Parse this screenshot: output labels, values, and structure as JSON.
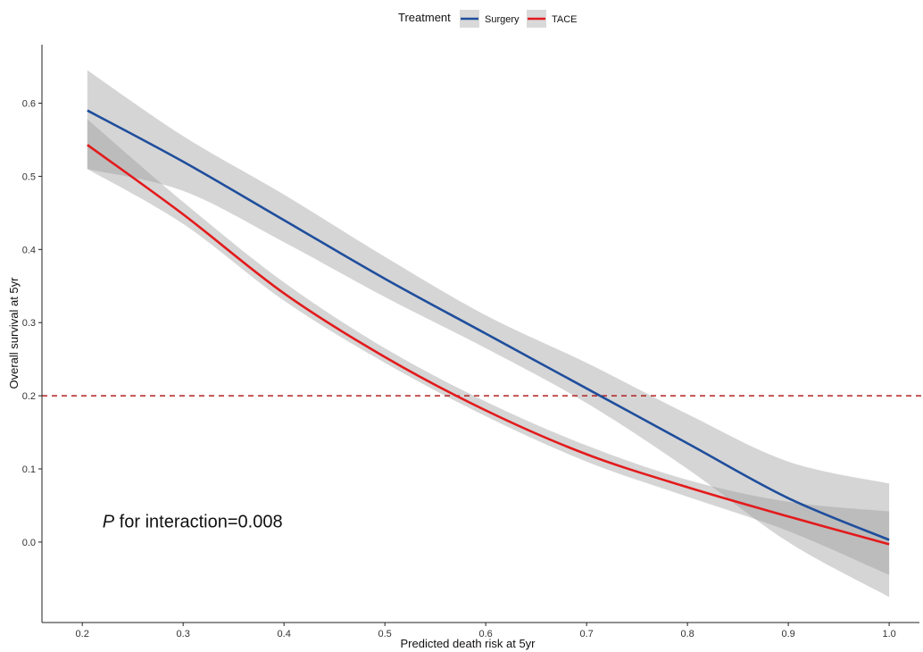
{
  "chart_data": {
    "type": "line",
    "title": "",
    "xlabel": "Predicted death risk at 5yr",
    "ylabel": "Overall survival at 5yr",
    "xlim": [
      0.16,
      1.03
    ],
    "ylim": [
      -0.11,
      0.68
    ],
    "x_ticks": [
      "0.2",
      "0.3",
      "0.4",
      "0.5",
      "0.6",
      "0.7",
      "0.8",
      "0.9",
      "1.0"
    ],
    "y_ticks": [
      "0.0",
      "0.1",
      "0.2",
      "0.3",
      "0.4",
      "0.5",
      "0.6"
    ],
    "grid": false,
    "legend": {
      "title": "Treatment",
      "placement": "top-center"
    },
    "reference_line": {
      "y": 0.2,
      "style": "dashed",
      "color": "#b22222"
    },
    "annotation": {
      "italic": "P",
      "text": " for interaction=0.008",
      "x": 0.22,
      "y": 0.02
    },
    "series": [
      {
        "name": "Surgery",
        "color": "#1f4e9c",
        "x": [
          0.205,
          0.3,
          0.4,
          0.5,
          0.6,
          0.7,
          0.8,
          0.9,
          1.0
        ],
        "y": [
          0.59,
          0.52,
          0.44,
          0.36,
          0.285,
          0.21,
          0.135,
          0.06,
          0.003
        ],
        "lower": [
          0.51,
          0.48,
          0.41,
          0.335,
          0.265,
          0.19,
          0.1,
          0.0,
          -0.075
        ],
        "upper": [
          0.645,
          0.555,
          0.475,
          0.39,
          0.31,
          0.245,
          0.175,
          0.11,
          0.08
        ]
      },
      {
        "name": "TACE",
        "color": "#e31a1c",
        "x": [
          0.205,
          0.3,
          0.4,
          0.5,
          0.6,
          0.7,
          0.8,
          0.9,
          1.0
        ],
        "y": [
          0.543,
          0.448,
          0.34,
          0.253,
          0.18,
          0.12,
          0.075,
          0.035,
          -0.003
        ],
        "lower": [
          0.51,
          0.435,
          0.33,
          0.245,
          0.172,
          0.11,
          0.062,
          0.015,
          -0.045
        ],
        "upper": [
          0.578,
          0.465,
          0.355,
          0.265,
          0.192,
          0.132,
          0.085,
          0.055,
          0.042
        ]
      }
    ]
  }
}
